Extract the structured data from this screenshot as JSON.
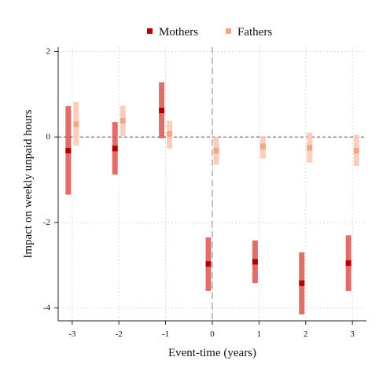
{
  "chart_data": {
    "type": "scatter",
    "subtype": "event-study coefficient plot with confidence intervals",
    "title": "",
    "xlabel": "Event-time (years)",
    "ylabel": "Impact on weekly unpaid hours",
    "x_ticks": [
      -3,
      -2,
      -1,
      0,
      1,
      2,
      3
    ],
    "y_ticks": [
      -4,
      -2,
      0,
      2
    ],
    "xlim": [
      -3.3,
      3.3
    ],
    "ylim": [
      -4.3,
      2.1
    ],
    "grid": true,
    "legend_position": "top",
    "reference_lines": {
      "horizontal_y": 0,
      "vertical_x": 0
    },
    "colors": {
      "Mothers": "#b30000",
      "Fathers": "#f4a582"
    },
    "series": [
      {
        "name": "Mothers",
        "color": "#b30000",
        "ci_color": "#d9534f",
        "points": [
          {
            "x": -3,
            "y": -0.32,
            "low": -1.35,
            "high": 0.72
          },
          {
            "x": -2,
            "y": -0.27,
            "low": -0.88,
            "high": 0.35
          },
          {
            "x": -1,
            "y": 0.62,
            "low": -0.03,
            "high": 1.28
          },
          {
            "x": 0,
            "y": -2.97,
            "low": -3.6,
            "high": -2.35
          },
          {
            "x": 1,
            "y": -2.92,
            "low": -3.42,
            "high": -2.42
          },
          {
            "x": 2,
            "y": -3.42,
            "low": -4.15,
            "high": -2.7
          },
          {
            "x": 3,
            "y": -2.95,
            "low": -3.6,
            "high": -2.3
          }
        ]
      },
      {
        "name": "Fathers",
        "color": "#f4a582",
        "ci_color": "#fbc8b4",
        "points": [
          {
            "x": -3,
            "y": 0.3,
            "low": -0.2,
            "high": 0.82
          },
          {
            "x": -2,
            "y": 0.38,
            "low": 0.02,
            "high": 0.73
          },
          {
            "x": -1,
            "y": 0.07,
            "low": -0.27,
            "high": 0.38
          },
          {
            "x": 0,
            "y": -0.32,
            "low": -0.65,
            "high": 0.0
          },
          {
            "x": 1,
            "y": -0.22,
            "low": -0.5,
            "high": 0.02
          },
          {
            "x": 2,
            "y": -0.25,
            "low": -0.6,
            "high": 0.1
          },
          {
            "x": 3,
            "y": -0.32,
            "low": -0.68,
            "high": 0.05
          }
        ]
      }
    ]
  }
}
